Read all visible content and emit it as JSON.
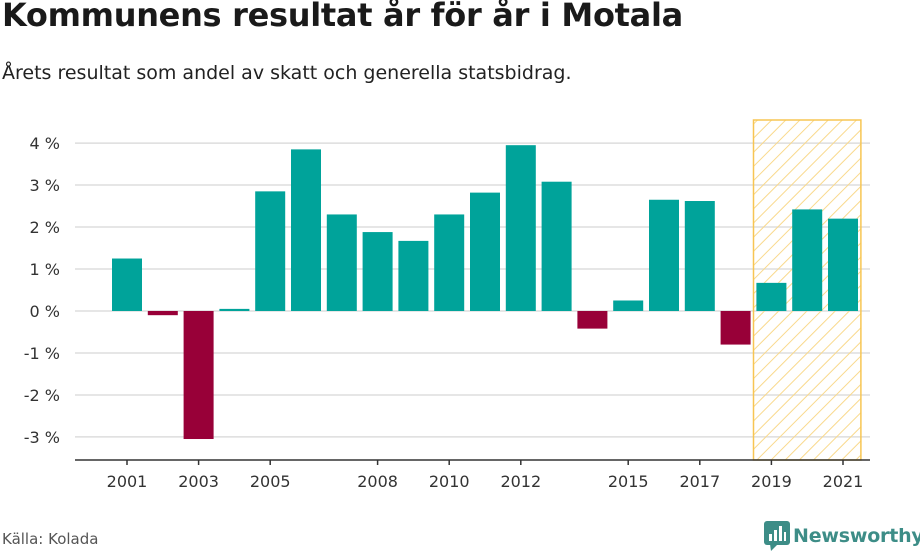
{
  "title": "Kommunens resultat år för år i Motala",
  "subtitle": "Årets resultat som andel av skatt och generella statsbidrag.",
  "source": "Källa: Kolada",
  "brand": "Newsworthy",
  "colors": {
    "positive": "#00a39a",
    "negative": "#980038",
    "grid": "#dddddd",
    "axis": "#333333",
    "highlight_stroke": "#f7c553",
    "highlight_hatch": "#f9d98c",
    "brand": "#3d8d87"
  },
  "chart_data": {
    "type": "bar",
    "categories": [
      "2001",
      "2002",
      "2003",
      "2004",
      "2005",
      "2006",
      "2007",
      "2008",
      "2009",
      "2010",
      "2011",
      "2012",
      "2013",
      "2014",
      "2015",
      "2016",
      "2017",
      "2018",
      "2019",
      "2020",
      "2021"
    ],
    "values": [
      1.25,
      -0.1,
      -3.05,
      0.05,
      2.85,
      3.85,
      2.3,
      1.88,
      1.67,
      2.3,
      2.82,
      3.95,
      3.08,
      -0.42,
      0.25,
      2.65,
      2.62,
      -0.8,
      0.67,
      2.42,
      2.2
    ],
    "xtick_labels": [
      "2001",
      "2003",
      "2005",
      "2008",
      "2010",
      "2012",
      "2015",
      "2017",
      "2019",
      "2021"
    ],
    "ytick_values": [
      4,
      3,
      2,
      1,
      0,
      -1,
      -2,
      -3
    ],
    "ytick_labels": [
      "4 %",
      "3 %",
      "2 %",
      "1 %",
      "0 %",
      "-1 %",
      "-2 %",
      "-3 %"
    ],
    "ylim": [
      -3.55,
      4.55
    ],
    "highlight_range": [
      "2019",
      "2021"
    ],
    "grid": true,
    "legend": "none"
  }
}
